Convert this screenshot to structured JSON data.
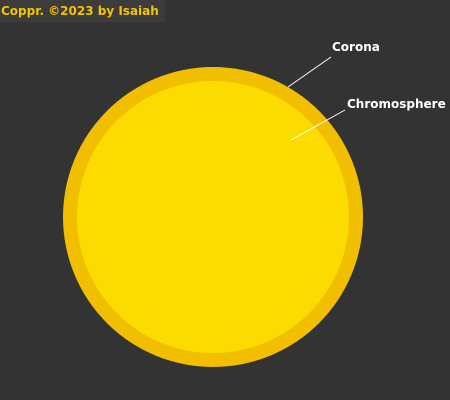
{
  "copyright": "Coppr. ©2023 by Isaiah",
  "labels": {
    "corona": "Corona",
    "chromosphere": "Chromosphere"
  },
  "colors": {
    "background": "#333333",
    "corona": "#f2bf00",
    "chromosphere": "#fcdc00",
    "copyright_text": "#f5c400",
    "label_text": "#ffffff",
    "leader_line": "#ffffff"
  }
}
